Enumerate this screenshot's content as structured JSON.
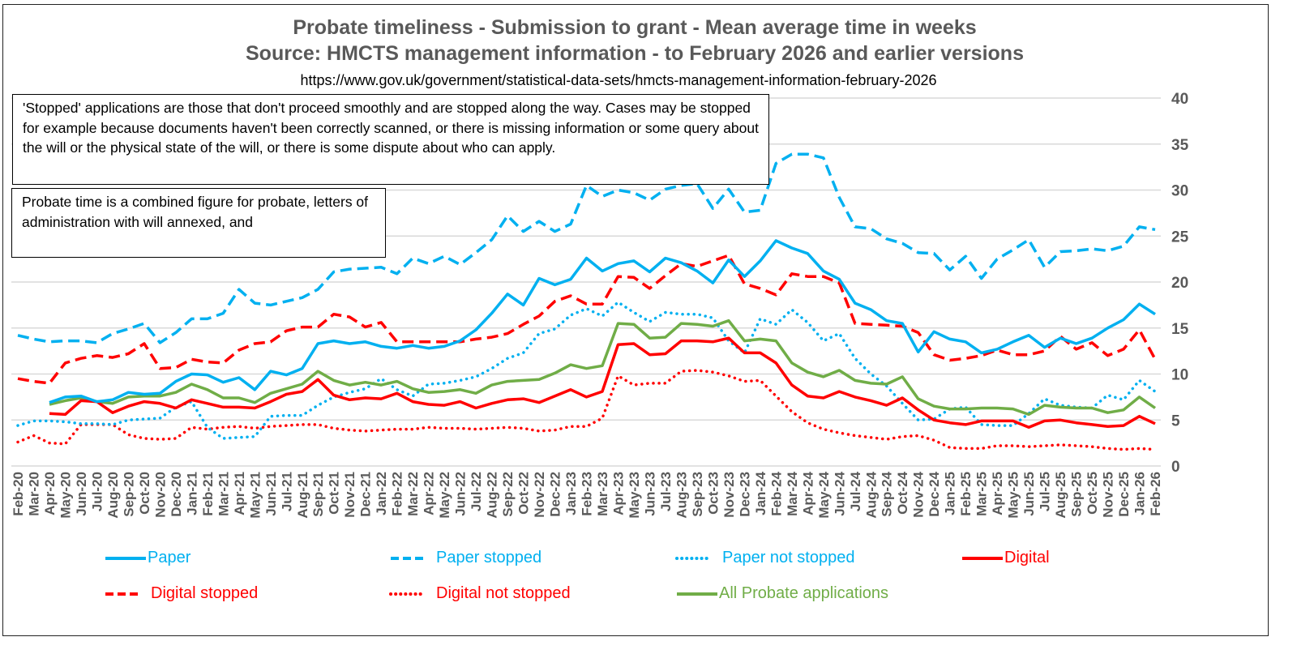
{
  "chart_data": {
    "type": "line",
    "title": "Probate timeliness - Submission to grant - Mean average time in weeks",
    "subtitle": "Source: HMCTS management information - to February 2026 and earlier versions",
    "source_url": "https://www.gov.uk/government/statistical-data-sets/hmcts-management-information-february-2026",
    "xlabel": "",
    "ylabel": "",
    "ylim": [
      0,
      40
    ],
    "yticks": [
      0,
      5,
      10,
      15,
      20,
      25,
      30,
      35,
      40
    ],
    "y_axis_side": "right",
    "grid": true,
    "legend_position": "bottom",
    "x": [
      "Feb-20",
      "Mar-20",
      "Apr-20",
      "May-20",
      "Jun-20",
      "Jul-20",
      "Aug-20",
      "Sep-20",
      "Oct-20",
      "Nov-20",
      "Dec-20",
      "Jan-21",
      "Feb-21",
      "Mar-21",
      "Apr-21",
      "May-21",
      "Jun-21",
      "Jul-21",
      "Aug-21",
      "Sep-21",
      "Oct-21",
      "Nov-21",
      "Dec-21",
      "Jan-22",
      "Feb-22",
      "Mar-22",
      "Apr-22",
      "May-22",
      "Jun-22",
      "Jul-22",
      "Aug-22",
      "Sep-22",
      "Oct-22",
      "Nov-22",
      "Dec-22",
      "Jan-23",
      "Feb-23",
      "Mar-23",
      "Apr-23",
      "May-23",
      "Jun-23",
      "Jul-23",
      "Aug-23",
      "Sep-23",
      "Oct-23",
      "Nov-23",
      "Dec-23",
      "Jan-24",
      "Feb-24",
      "Mar-24",
      "Apr-24",
      "May-24",
      "Jun-24",
      "Jul-24",
      "Aug-24",
      "Sep-24",
      "Oct-24",
      "Nov-24",
      "Dec-24",
      "Jan-25",
      "Feb-25",
      "Mar-25",
      "Apr-25",
      "May-25",
      "Jun-25",
      "Jul-25",
      "Aug-25",
      "Sep-25",
      "Oct-25",
      "Nov-25",
      "Dec-25",
      "Jan-26",
      "Feb-26"
    ],
    "series": [
      {
        "name": "Paper",
        "color": "#00B0F0",
        "style": "solid",
        "values": [
          null,
          null,
          6.9,
          7.5,
          7.6,
          7.0,
          7.2,
          8.0,
          7.8,
          7.9,
          9.2,
          10.0,
          9.9,
          9.1,
          9.6,
          8.3,
          10.3,
          9.9,
          10.6,
          13.3,
          13.6,
          13.3,
          13.5,
          13.0,
          12.8,
          13.1,
          12.8,
          13.0,
          13.6,
          14.8,
          16.6,
          18.7,
          17.5,
          20.4,
          19.7,
          20.3,
          22.6,
          21.2,
          22.0,
          22.3,
          21.1,
          22.6,
          22.1,
          21.2,
          19.9,
          22.4,
          20.6,
          22.3,
          24.5,
          23.7,
          23.1,
          21.2,
          20.3,
          17.7,
          17.0,
          15.8,
          15.5,
          12.4,
          14.6,
          13.8,
          13.5,
          12.3,
          12.7,
          13.5,
          14.2,
          12.9,
          13.9,
          13.3,
          13.9,
          15.0,
          15.9,
          17.6,
          16.5
        ]
      },
      {
        "name": "Paper stopped",
        "color": "#00B0F0",
        "style": "dashed",
        "values": [
          14.2,
          13.8,
          13.5,
          13.6,
          13.6,
          13.4,
          14.4,
          14.9,
          15.5,
          13.4,
          14.5,
          16.0,
          16.0,
          16.6,
          19.2,
          17.7,
          17.5,
          17.9,
          18.3,
          19.2,
          21.1,
          21.4,
          21.5,
          21.6,
          20.9,
          22.6,
          22.0,
          22.8,
          21.9,
          23.2,
          24.6,
          27.2,
          25.5,
          26.6,
          25.5,
          26.3,
          30.5,
          29.3,
          30.0,
          29.7,
          28.9,
          30.1,
          30.5,
          30.7,
          28.0,
          30.1,
          27.6,
          27.8,
          32.9,
          33.9,
          33.9,
          33.5,
          29.2,
          26.0,
          25.8,
          24.7,
          24.2,
          23.2,
          23.1,
          21.3,
          22.8,
          20.4,
          22.5,
          23.5,
          24.6,
          21.6,
          23.3,
          23.4,
          23.6,
          23.4,
          23.9,
          26.0,
          25.7
        ]
      },
      {
        "name": "Paper not stopped",
        "color": "#00B0F0",
        "style": "dotted",
        "values": [
          4.4,
          4.9,
          4.9,
          4.8,
          4.6,
          4.6,
          4.5,
          5.0,
          5.1,
          5.2,
          6.4,
          7.0,
          4.2,
          3.0,
          3.1,
          3.2,
          5.4,
          5.5,
          5.5,
          6.6,
          7.5,
          8.0,
          8.4,
          9.5,
          8.3,
          7.6,
          8.9,
          9.0,
          9.3,
          9.7,
          10.6,
          11.7,
          12.3,
          14.4,
          14.9,
          16.4,
          17.1,
          16.3,
          17.8,
          16.7,
          15.7,
          16.7,
          16.5,
          16.5,
          16.1,
          13.6,
          12.3,
          16.0,
          15.4,
          17.0,
          15.6,
          13.6,
          14.4,
          11.7,
          10.0,
          8.7,
          6.8,
          5.0,
          5.1,
          6.2,
          6.4,
          4.5,
          4.4,
          4.4,
          5.7,
          7.3,
          6.6,
          6.4,
          6.3,
          7.7,
          7.2,
          9.3,
          8.1
        ]
      },
      {
        "name": "Digital",
        "color": "#FF0000",
        "style": "solid",
        "values": [
          null,
          null,
          5.7,
          5.6,
          7.1,
          7.0,
          5.8,
          6.5,
          7.0,
          6.8,
          6.3,
          7.2,
          6.8,
          6.4,
          6.4,
          6.3,
          7.0,
          7.8,
          8.1,
          9.4,
          7.7,
          7.2,
          7.4,
          7.3,
          7.9,
          7.0,
          6.7,
          6.6,
          7.0,
          6.3,
          6.8,
          7.2,
          7.3,
          6.9,
          7.6,
          8.3,
          7.5,
          8.1,
          13.2,
          13.3,
          12.1,
          12.2,
          13.6,
          13.6,
          13.5,
          13.9,
          12.3,
          12.3,
          11.2,
          8.8,
          7.6,
          7.4,
          8.1,
          7.5,
          7.1,
          6.6,
          7.4,
          6.1,
          5.0,
          4.7,
          4.5,
          4.9,
          4.9,
          4.9,
          4.2,
          4.9,
          5.0,
          4.7,
          4.5,
          4.3,
          4.4,
          5.4,
          4.6
        ]
      },
      {
        "name": "Digital stopped",
        "color": "#FF0000",
        "style": "dashed",
        "values": [
          9.5,
          9.2,
          9.0,
          11.2,
          11.7,
          12.0,
          11.8,
          12.2,
          13.3,
          10.6,
          10.7,
          11.6,
          11.3,
          11.2,
          12.6,
          13.3,
          13.5,
          14.7,
          15.1,
          15.1,
          16.5,
          16.2,
          15.1,
          15.6,
          13.5,
          13.5,
          13.5,
          13.5,
          13.5,
          13.8,
          14.0,
          14.4,
          15.4,
          16.3,
          17.9,
          18.5,
          17.6,
          17.6,
          20.6,
          20.5,
          19.3,
          20.7,
          22.0,
          21.7,
          22.3,
          22.9,
          19.8,
          19.3,
          18.6,
          20.9,
          20.6,
          20.6,
          19.9,
          15.5,
          15.4,
          15.3,
          15.2,
          14.5,
          12.1,
          11.5,
          11.7,
          12.0,
          12.6,
          12.1,
          12.1,
          12.5,
          14.1,
          12.7,
          13.4,
          12.0,
          12.7,
          14.8,
          11.6
        ]
      },
      {
        "name": "Digital not stopped",
        "color": "#FF0000",
        "style": "dotted",
        "values": [
          2.6,
          3.3,
          2.5,
          2.4,
          4.5,
          4.5,
          4.5,
          3.4,
          3.0,
          2.9,
          3.0,
          4.2,
          4.0,
          4.2,
          4.3,
          4.1,
          4.3,
          4.4,
          4.5,
          4.5,
          4.1,
          3.9,
          3.8,
          3.9,
          4.0,
          4.0,
          4.2,
          4.1,
          4.1,
          4.0,
          4.1,
          4.2,
          4.1,
          3.8,
          3.9,
          4.3,
          4.3,
          5.2,
          9.8,
          8.8,
          9.0,
          9.0,
          10.3,
          10.4,
          10.2,
          9.8,
          9.2,
          9.3,
          7.6,
          5.9,
          4.7,
          4.0,
          3.6,
          3.3,
          3.1,
          2.9,
          3.2,
          3.3,
          2.8,
          2.0,
          1.9,
          1.9,
          2.2,
          2.2,
          2.1,
          2.2,
          2.3,
          2.2,
          2.1,
          1.9,
          1.8,
          1.9,
          1.8
        ]
      },
      {
        "name": "All Probate applications",
        "color": "#70AD47",
        "style": "solid",
        "values": [
          null,
          null,
          6.7,
          7.1,
          7.4,
          7.0,
          6.8,
          7.5,
          7.6,
          7.6,
          8.0,
          8.9,
          8.3,
          7.4,
          7.4,
          6.9,
          7.9,
          8.4,
          8.9,
          10.3,
          9.3,
          8.8,
          9.1,
          8.8,
          9.2,
          8.4,
          8.0,
          8.1,
          8.3,
          7.9,
          8.8,
          9.2,
          9.3,
          9.4,
          10.1,
          11.0,
          10.6,
          10.9,
          15.5,
          15.4,
          13.9,
          14.0,
          15.5,
          15.4,
          15.2,
          15.8,
          13.6,
          13.8,
          13.6,
          11.2,
          10.2,
          9.7,
          10.4,
          9.3,
          9.0,
          8.9,
          9.7,
          7.3,
          6.5,
          6.2,
          6.2,
          6.3,
          6.3,
          6.2,
          5.6,
          6.6,
          6.4,
          6.3,
          6.3,
          5.8,
          6.1,
          7.5,
          6.3
        ]
      }
    ]
  },
  "header": {
    "title_line1": "Probate timeliness - Submission to grant - Mean average time in weeks",
    "title_line2": "Source: HMCTS management information - to February 2026 and earlier versions",
    "url": "https://www.gov.uk/government/statistical-data-sets/hmcts-management-information-february-2026"
  },
  "notes": {
    "stopped": "'Stopped' applications are those that don't proceed smoothly and are stopped along the way. Cases may be stopped for example because documents haven't been correctly scanned, or there is missing information or some query about the will or the physical state of the will, or there is some dispute about who can apply.",
    "probate": "Probate time is a combined figure for probate, letters of administration with will annexed, and"
  },
  "legend": [
    {
      "label": "Paper",
      "color": "#00B0F0",
      "style": "solid"
    },
    {
      "label": "Paper stopped",
      "color": "#00B0F0",
      "style": "dashed"
    },
    {
      "label": "Paper not stopped",
      "color": "#00B0F0",
      "style": "dotted"
    },
    {
      "label": "Digital",
      "color": "#FF0000",
      "style": "solid"
    },
    {
      "label": "Digital stopped",
      "color": "#FF0000",
      "style": "dashed"
    },
    {
      "label": "Digital not stopped",
      "color": "#FF0000",
      "style": "dotted"
    },
    {
      "label": "All Probate applications",
      "color": "#70AD47",
      "style": "solid"
    }
  ]
}
